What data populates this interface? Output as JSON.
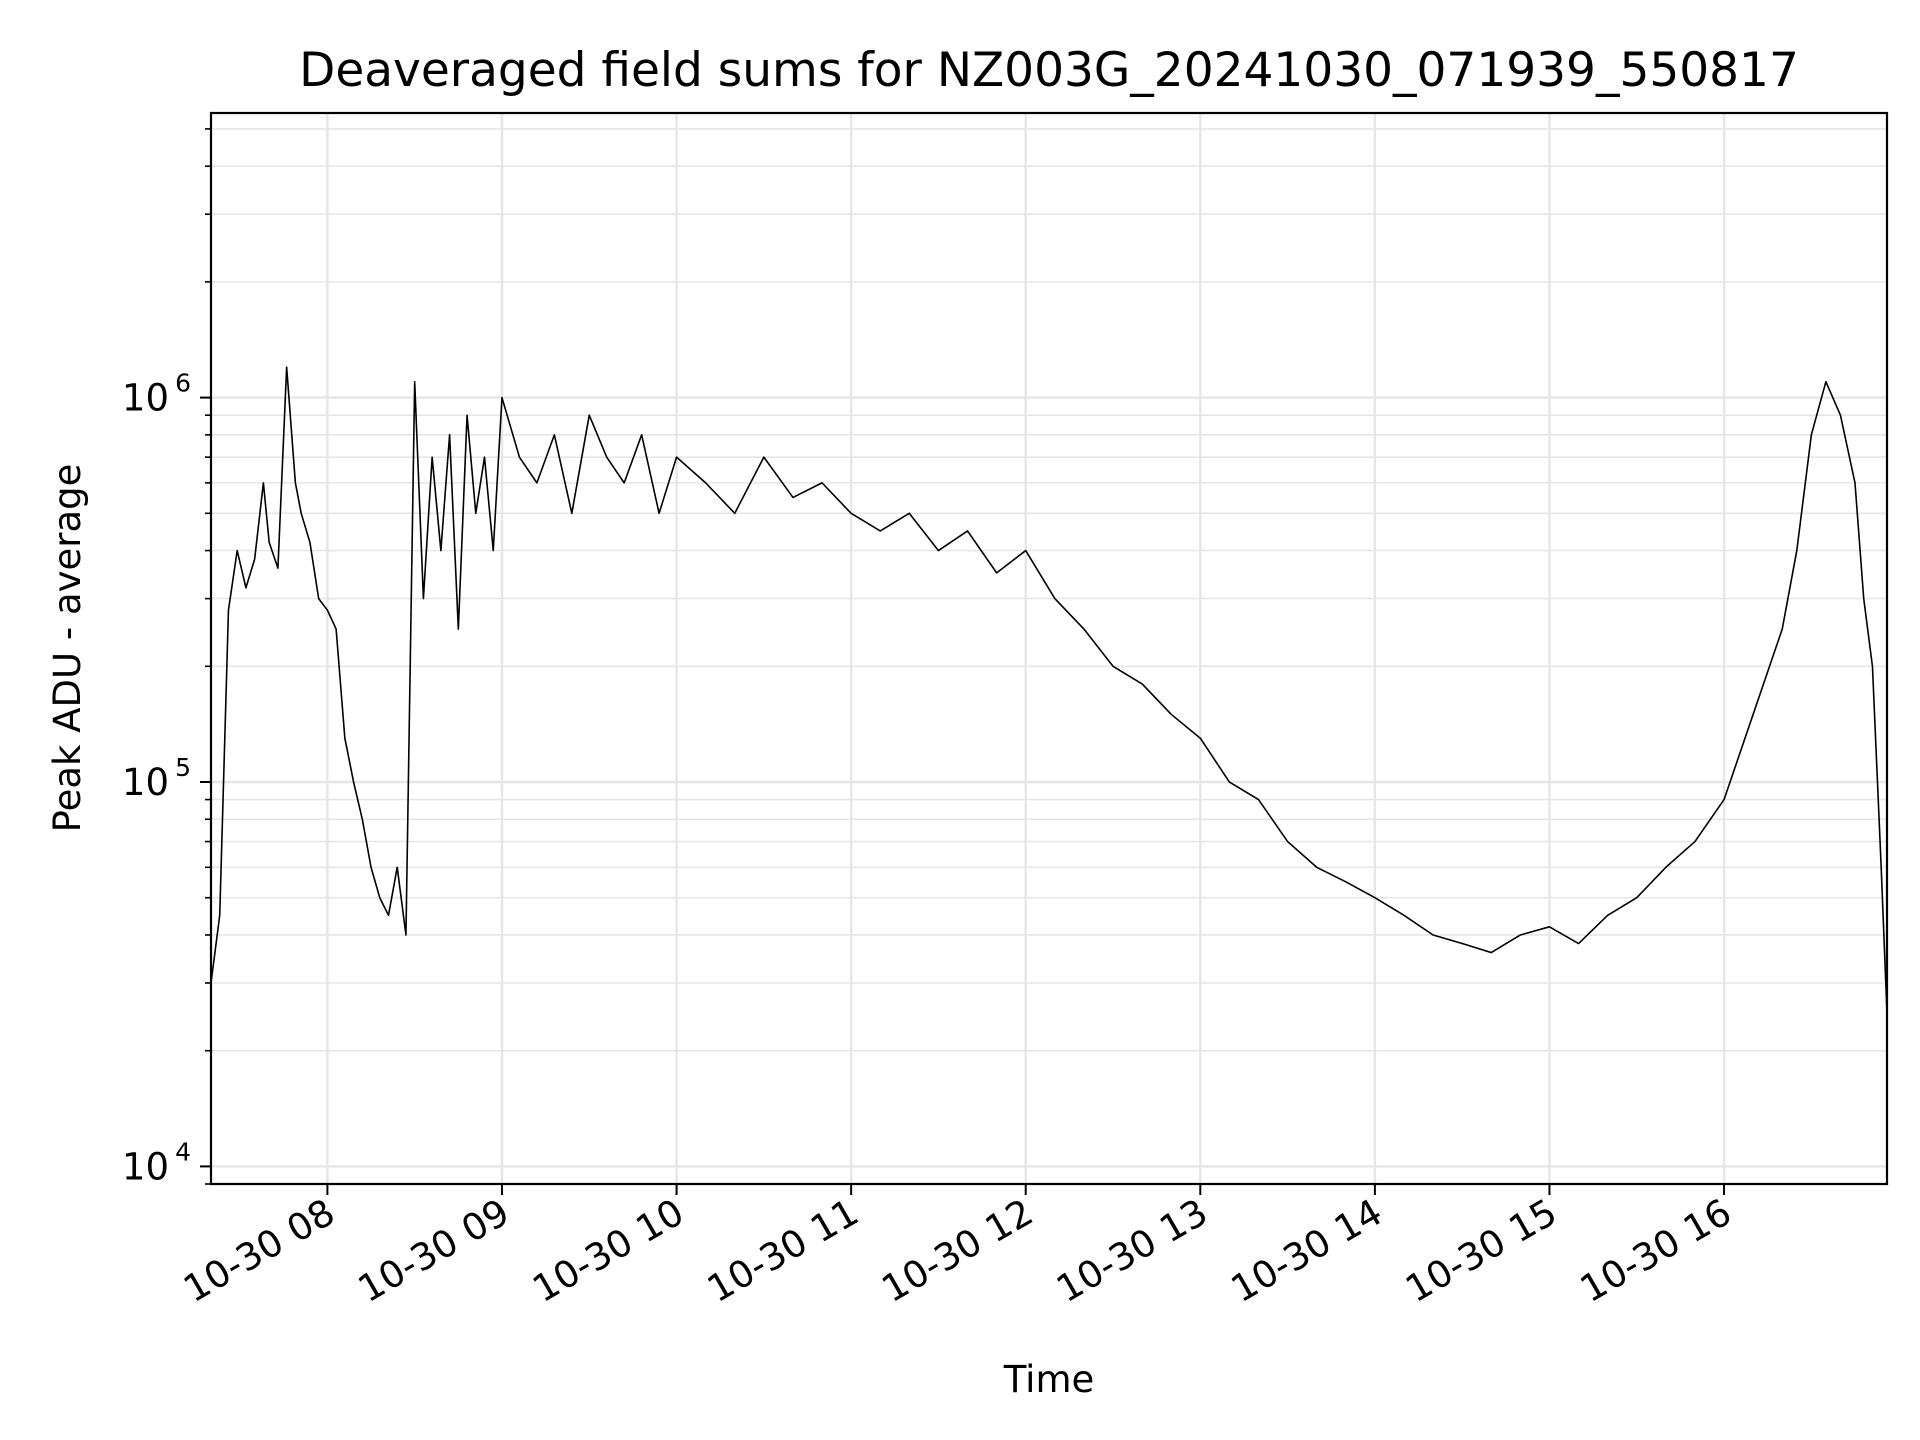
{
  "chart_data": {
    "type": "line",
    "title": "Deaveraged field sums for NZ003G_20241030_071939_550817",
    "xlabel": "Time",
    "ylabel": "Peak ADU - average",
    "yscale": "log",
    "xlim": [
      "2024-10-30 07:20",
      "2024-10-30 16:56"
    ],
    "ylim": [
      9000,
      5500000
    ],
    "grid": true,
    "x_ticks": [
      {
        "value": "2024-10-30 08:00",
        "label": "10-30 08"
      },
      {
        "value": "2024-10-30 09:00",
        "label": "10-30 09"
      },
      {
        "value": "2024-10-30 10:00",
        "label": "10-30 10"
      },
      {
        "value": "2024-10-30 11:00",
        "label": "10-30 11"
      },
      {
        "value": "2024-10-30 12:00",
        "label": "10-30 12"
      },
      {
        "value": "2024-10-30 13:00",
        "label": "10-30 13"
      },
      {
        "value": "2024-10-30 14:00",
        "label": "10-30 14"
      },
      {
        "value": "2024-10-30 15:00",
        "label": "10-30 15"
      },
      {
        "value": "2024-10-30 16:00",
        "label": "10-30 16"
      }
    ],
    "y_ticks": [
      {
        "value": 10000,
        "base": "10",
        "exp": "4"
      },
      {
        "value": 100000,
        "base": "10",
        "exp": "5"
      },
      {
        "value": 1000000,
        "base": "10",
        "exp": "6"
      }
    ],
    "series": [
      {
        "color": "#000000",
        "x": [
          "07:20",
          "07:23",
          "07:26",
          "07:29",
          "07:32",
          "07:35",
          "07:38",
          "07:40",
          "07:43",
          "07:46",
          "07:49",
          "07:51",
          "07:54",
          "07:57",
          "08:00",
          "08:03",
          "08:06",
          "08:09",
          "08:12",
          "08:15",
          "08:18",
          "08:21",
          "08:24",
          "08:27",
          "08:30",
          "08:33",
          "08:36",
          "08:39",
          "08:42",
          "08:45",
          "08:48",
          "08:51",
          "08:54",
          "08:57",
          "09:00",
          "09:06",
          "09:12",
          "09:18",
          "09:24",
          "09:30",
          "09:36",
          "09:42",
          "09:48",
          "09:54",
          "10:00",
          "10:10",
          "10:20",
          "10:30",
          "10:40",
          "10:50",
          "11:00",
          "11:10",
          "11:20",
          "11:30",
          "11:40",
          "11:50",
          "12:00",
          "12:10",
          "12:20",
          "12:30",
          "12:40",
          "12:50",
          "13:00",
          "13:10",
          "13:20",
          "13:30",
          "13:40",
          "13:50",
          "14:00",
          "14:10",
          "14:20",
          "14:30",
          "14:40",
          "14:50",
          "15:00",
          "15:10",
          "15:20",
          "15:30",
          "15:40",
          "15:50",
          "16:00",
          "16:10",
          "16:20",
          "16:25",
          "16:30",
          "16:35",
          "16:40",
          "16:45",
          "16:48",
          "16:51",
          "16:54",
          "16:56"
        ],
        "values": [
          30000,
          45000,
          280000,
          400000,
          320000,
          380000,
          600000,
          420000,
          360000,
          1200000,
          600000,
          500000,
          420000,
          300000,
          280000,
          250000,
          130000,
          100000,
          80000,
          60000,
          50000,
          45000,
          60000,
          40000,
          1100000,
          300000,
          700000,
          400000,
          800000,
          250000,
          900000,
          500000,
          700000,
          400000,
          1000000,
          700000,
          600000,
          800000,
          500000,
          900000,
          700000,
          600000,
          800000,
          500000,
          700000,
          600000,
          500000,
          700000,
          550000,
          600000,
          500000,
          450000,
          500000,
          400000,
          450000,
          350000,
          400000,
          300000,
          250000,
          200000,
          180000,
          150000,
          130000,
          100000,
          90000,
          70000,
          60000,
          55000,
          50000,
          45000,
          40000,
          38000,
          36000,
          40000,
          42000,
          38000,
          45000,
          50000,
          60000,
          70000,
          90000,
          150000,
          250000,
          400000,
          800000,
          1100000,
          900000,
          600000,
          300000,
          200000,
          60000,
          25000
        ]
      }
    ]
  }
}
